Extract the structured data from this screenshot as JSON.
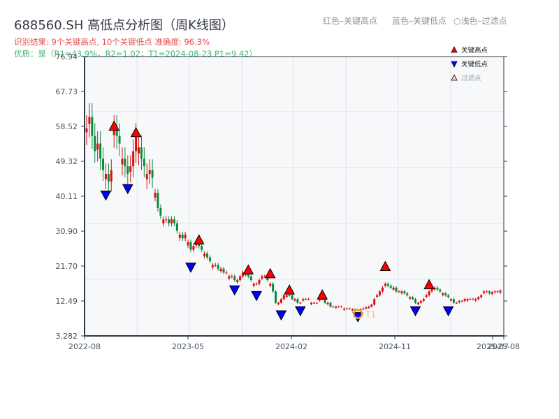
{
  "header": {
    "title": "688560.SH 高低点分析图（周K线图）",
    "result_line": "识别结果: 9个关键高点, 10个关键低点   准确度: 96.3%",
    "quality_line": "优质：是（R1=43.9%，R2=1.02；T1=2024-08-23 P1=9.42）",
    "hint_red": "红色–关键高点",
    "hint_blue": "蓝色–关键低点",
    "hint_light": "○浅色–过滤点"
  },
  "legend": {
    "items": [
      {
        "label": "关键高点",
        "marker": "triangle-up",
        "color": "#ff0000"
      },
      {
        "label": "关键低点",
        "marker": "triangle-down",
        "color": "#0000ff"
      },
      {
        "label": "过滤点",
        "marker": "triangle-up-outline",
        "color": "#ffcccc"
      }
    ]
  },
  "colors": {
    "up": "#dd0d0d",
    "down": "#0b8a3a",
    "plot_bg": "#f6f8fa",
    "grid": "#e2e5e9",
    "axis": "#2c3a48",
    "t1_ring": "#f0a030"
  },
  "chart_data": {
    "type": "candlestick",
    "title": "688560.SH 高低点分析图（周K线图）",
    "xlabel": "",
    "ylabel": "",
    "ylim": [
      3.282,
      76.94
    ],
    "y_ticks": [
      "76.94",
      "67.73",
      "58.52",
      "49.32",
      "40.11",
      "30.90",
      "21.70",
      "12.49",
      "3.282"
    ],
    "x_ticks": [
      "2022-08",
      "2023-05",
      "2024-02",
      "2024-11",
      "2025-07",
      "2025-08"
    ],
    "grid": true,
    "legend_position": "upper right",
    "key_highs": [
      {
        "week": 10,
        "price": 57.5
      },
      {
        "week": 18,
        "price": 55.8
      },
      {
        "week": 41,
        "price": 27.5
      },
      {
        "week": 59,
        "price": 19.6
      },
      {
        "week": 67,
        "price": 18.6
      },
      {
        "week": 74,
        "price": 14.3
      },
      {
        "week": 86,
        "price": 13.0
      },
      {
        "week": 109,
        "price": 20.5
      },
      {
        "week": 125,
        "price": 15.7
      }
    ],
    "key_lows": [
      {
        "week": 7,
        "price": 41.5
      },
      {
        "week": 15,
        "price": 43.2
      },
      {
        "week": 38,
        "price": 22.5
      },
      {
        "week": 54,
        "price": 16.5
      },
      {
        "week": 62,
        "price": 15.0
      },
      {
        "week": 71,
        "price": 9.9
      },
      {
        "week": 78,
        "price": 11.0
      },
      {
        "week": 99,
        "price": 9.42
      },
      {
        "week": 120,
        "price": 11.0
      },
      {
        "week": 132,
        "price": 11.0
      }
    ],
    "t1_marker": {
      "week": 99,
      "price": 9.42,
      "label": "T1",
      "date": "2024-08-23"
    },
    "candles_close": [
      58,
      61,
      56,
      52,
      54,
      50,
      47,
      46,
      44,
      47,
      58,
      56,
      54,
      50,
      48,
      46,
      48,
      52,
      56,
      53,
      50,
      48,
      46,
      47,
      45,
      41,
      37,
      35,
      34,
      34,
      33,
      34,
      33,
      31,
      30,
      29,
      30,
      28,
      26,
      27,
      28,
      27,
      26,
      25,
      24,
      23,
      22,
      22,
      21,
      21,
      20,
      20,
      19,
      19,
      18,
      18,
      19,
      20,
      20,
      19,
      18,
      17,
      17,
      18,
      19,
      19,
      18,
      17,
      15,
      12,
      12,
      13,
      14,
      14,
      14,
      13,
      13,
      12,
      12,
      13,
      13,
      13,
      12,
      12,
      12,
      13,
      13,
      12,
      12,
      11,
      11,
      11,
      11,
      11,
      10.5,
      10.5,
      10.5,
      10.3,
      10.2,
      10,
      10.3,
      10.5,
      10.8,
      11,
      11.5,
      13,
      14,
      15,
      16,
      17,
      16.5,
      16,
      16,
      15,
      15,
      15,
      14.5,
      14,
      13.5,
      13,
      12,
      12,
      12.5,
      13,
      14,
      15,
      16,
      16,
      15.5,
      15,
      14.5,
      14,
      13.5,
      13,
      12,
      12,
      12.5,
      12.5,
      13,
      13,
      13,
      13,
      13,
      13.5,
      14,
      15,
      15,
      14.5,
      14.8,
      15,
      15,
      15.2
    ]
  }
}
